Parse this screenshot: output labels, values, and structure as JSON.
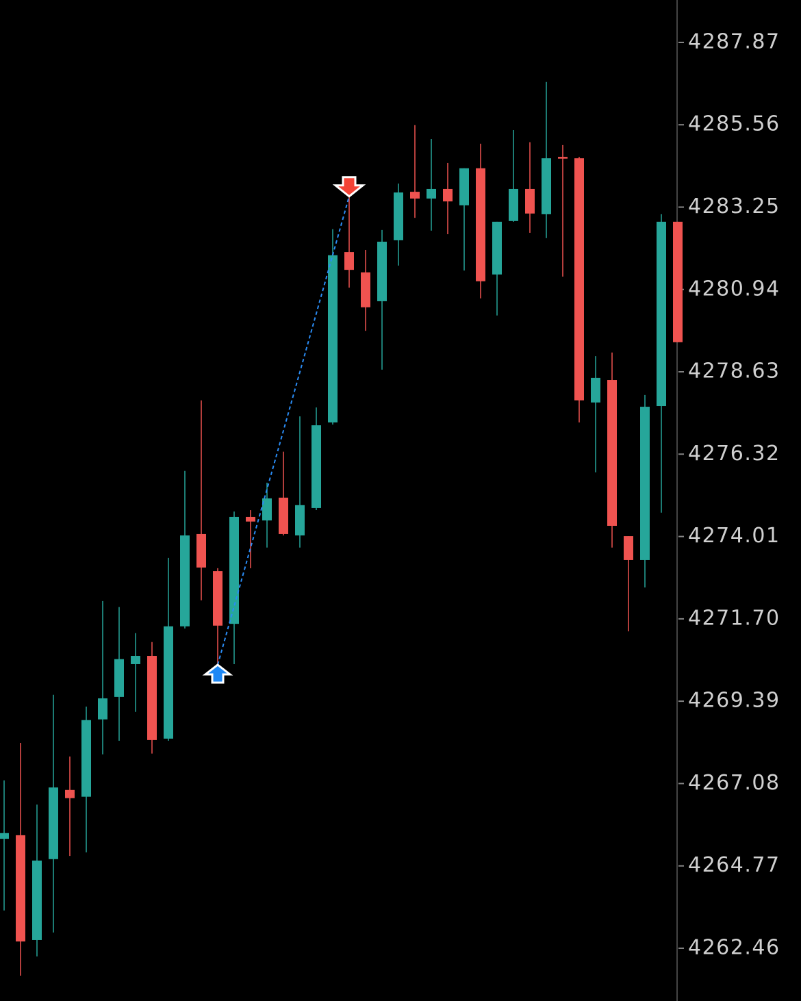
{
  "chart_data": {
    "type": "candlestick",
    "up_color": "#26a69a",
    "down_color": "#ef5350",
    "open": [
      4265.53,
      4265.63,
      4262.69,
      4264.96,
      4266.9,
      4266.71,
      4268.88,
      4269.51,
      4270.43,
      4270.66,
      4268.34,
      4271.49,
      4274.08,
      4273.04,
      4271.56,
      4274.56,
      4274.46,
      4275.1,
      4274.04,
      4274.81,
      4277.21,
      4281.99,
      4281.42,
      4280.61,
      4282.32,
      4283.68,
      4283.49,
      4283.76,
      4283.3,
      4284.34,
      4281.36,
      4282.86,
      4283.76,
      4283.05,
      4284.66,
      4284.62,
      4277.77,
      4278.4,
      4274.02,
      4273.35,
      4277.67,
      4282.84
    ],
    "high": [
      4267.17,
      4268.22,
      4266.49,
      4269.57,
      4267.84,
      4269.24,
      4272.2,
      4272.03,
      4271.3,
      4271.05,
      4273.41,
      4275.85,
      4277.83,
      4273.12,
      4274.71,
      4274.75,
      4275.52,
      4276.39,
      4277.38,
      4277.63,
      4282.63,
      4283.59,
      4282.05,
      4282.61,
      4283.91,
      4285.55,
      4285.16,
      4284.49,
      4284.34,
      4285.03,
      4282.84,
      4285.41,
      4285.07,
      4286.76,
      4284.99,
      4284.66,
      4279.07,
      4279.17,
      4274.02,
      4277.98,
      4283.05,
      4282.84
    ],
    "low": [
      4263.52,
      4261.69,
      4262.23,
      4262.9,
      4265.05,
      4265.15,
      4267.9,
      4268.28,
      4269.09,
      4267.92,
      4268.28,
      4271.43,
      4272.22,
      4269.95,
      4270.43,
      4273.12,
      4273.7,
      4274.04,
      4273.7,
      4274.75,
      4277.15,
      4280.99,
      4279.78,
      4278.69,
      4281.61,
      4282.95,
      4282.59,
      4282.49,
      4281.47,
      4280.69,
      4280.21,
      4282.84,
      4282.53,
      4282.38,
      4281.3,
      4277.21,
      4275.81,
      4273.7,
      4271.35,
      4272.58,
      4274.68,
      4279.46
    ],
    "close": [
      4265.69,
      4262.65,
      4264.92,
      4266.97,
      4266.67,
      4268.86,
      4269.47,
      4270.57,
      4270.66,
      4268.3,
      4271.49,
      4274.04,
      4273.14,
      4271.51,
      4274.56,
      4274.43,
      4275.08,
      4274.08,
      4274.89,
      4277.13,
      4281.9,
      4281.49,
      4280.44,
      4282.28,
      4283.66,
      4283.49,
      4283.76,
      4283.41,
      4284.34,
      4281.17,
      4282.84,
      4283.76,
      4283.07,
      4284.62,
      4284.61,
      4277.83,
      4278.46,
      4274.31,
      4273.35,
      4277.65,
      4282.84,
      4279.46
    ],
    "ylim": [
      4260.98,
      4289.06
    ],
    "yticks": [
      4287.87,
      4285.56,
      4283.25,
      4280.94,
      4278.63,
      4276.32,
      4274.01,
      {
        "value": 4271.7,
        "label": "4271.70"
      },
      4269.39,
      4267.08,
      4264.77,
      4262.46
    ]
  }
}
